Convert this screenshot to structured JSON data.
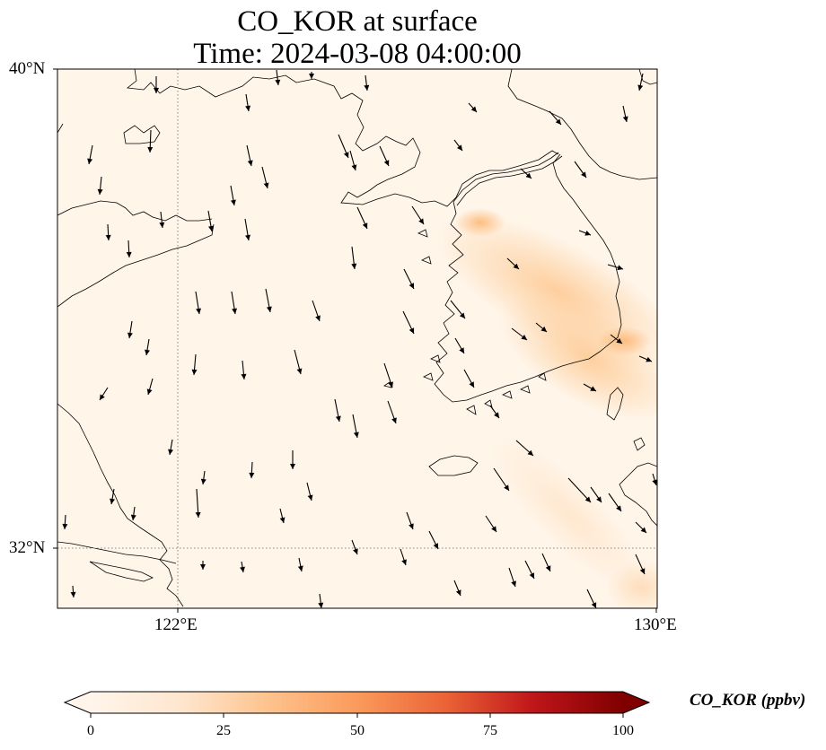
{
  "title": {
    "line1": "CO_KOR at surface",
    "line2": "Time: 2024-03-08 04:00:00"
  },
  "map": {
    "lat_labels": [
      "40°N",
      "32°N"
    ],
    "lon_labels": [
      "122°E",
      "130°E"
    ],
    "extent": {
      "lon_min": 120,
      "lon_max": 130,
      "lat_min": 31,
      "lat_max": 40
    },
    "background_color": "#fff5e9",
    "plume_color": "#fdc890",
    "gridline_style": "dotted"
  },
  "colorbar": {
    "label": "CO_KOR (ppbv)",
    "ticks": [
      "0",
      "25",
      "50",
      "75",
      "100"
    ],
    "range": [
      0,
      100
    ],
    "colormap": [
      "#fff5eb",
      "#fdd9b4",
      "#fdb97d",
      "#f98b4f",
      "#e35132",
      "#b90000",
      "#7f0000"
    ],
    "extend": "both"
  },
  "chart_data": {
    "type": "map",
    "variable": "CO_KOR",
    "units": "ppbv",
    "level": "surface",
    "time": "2024-03-08 04:00:00",
    "lon_range": [
      120,
      130
    ],
    "lat_range": [
      31,
      40
    ],
    "plume": {
      "description_lon_range": [
        127,
        130
      ],
      "description_lat_range": [
        33,
        37
      ],
      "max_value_approx": 20
    }
  }
}
